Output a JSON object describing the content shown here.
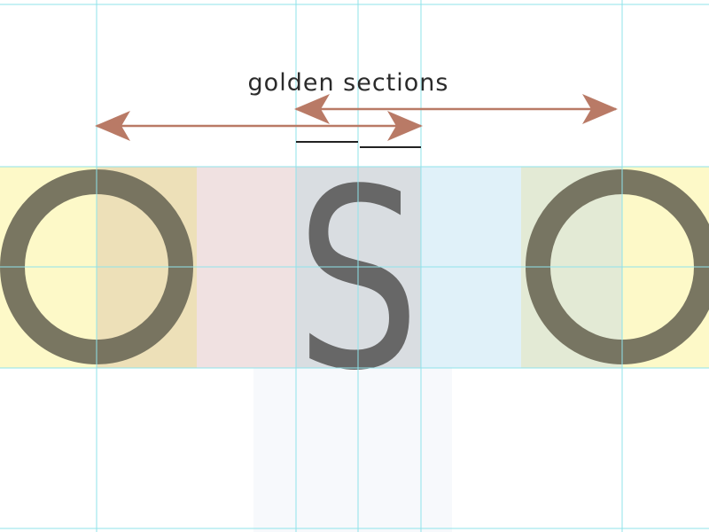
{
  "diagram": {
    "caption": "golden sections",
    "letters": [
      "O",
      "S",
      "O"
    ]
  },
  "colors": {
    "guide": "#8fe3ea",
    "arrow": "#b97a66",
    "letter": "#676767",
    "letter_dark": "#6e6a58",
    "band_yellow": "#fdf9c8",
    "band_tan": "#ede0b8",
    "band_pink": "#f0e1e1",
    "band_gray": "#d9dde1",
    "band_blue": "#e0f1f9",
    "band_green": "#e3ead5",
    "column_faint": "#f7f9fc"
  }
}
